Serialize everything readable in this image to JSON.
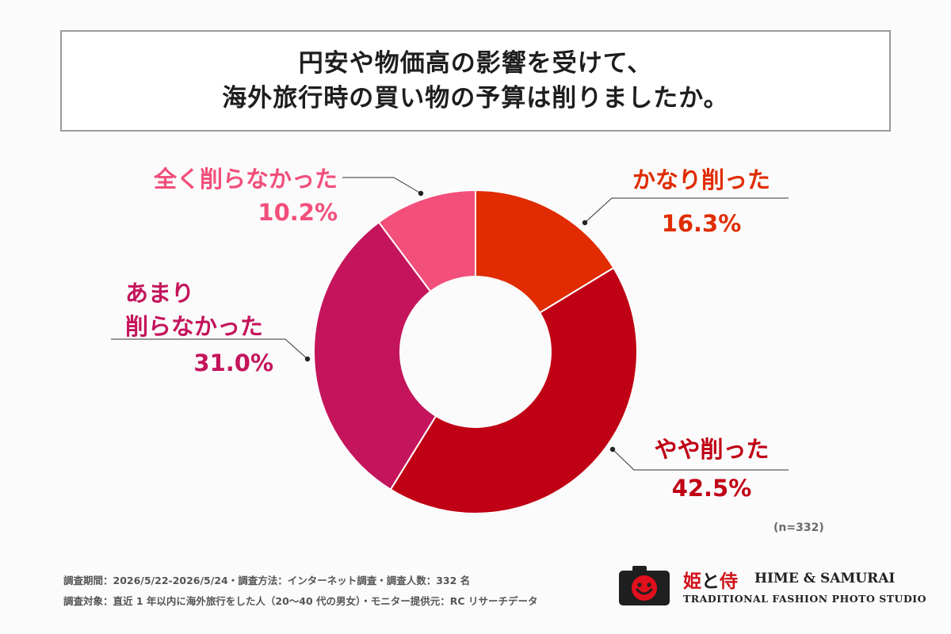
{
  "title": {
    "line1": "円安や物価高の影響を受けて、",
    "line2": "海外旅行時の買い物の予算は削りましたか。"
  },
  "chart_data": {
    "type": "pie",
    "donut": true,
    "unit": "%",
    "slices": [
      {
        "label": "かなり削った",
        "value": 16.3,
        "display": "16.3%",
        "color": "#e02c00"
      },
      {
        "label": "やや削った",
        "value": 42.5,
        "display": "42.5%",
        "color": "#c00014"
      },
      {
        "label": "あまり削らなかった",
        "value": 31.0,
        "display": "31.0%",
        "color": "#c4155c"
      },
      {
        "label": "全く削らなかった",
        "value": 10.2,
        "display": "10.2%",
        "color": "#f24f7b"
      }
    ],
    "legend": "callout-labels",
    "sample_size": "(n=332)"
  },
  "footnotes": {
    "line1": "調査期間：2026/5/22-2026/5/24・調査方法：インターネット調査・調査人数：332 名",
    "line2": "調査対象：直近 1 年以内に海外旅行をした人（20〜40 代の男女）・モニター提供元：RC リサーチデータ"
  },
  "logo": {
    "kanji_1": "姫",
    "kanji_2": "と",
    "kanji_3": "侍",
    "name_en": "HIME & SAMURAI",
    "tagline": "TRADITIONAL FASHION PHOTO STUDIO",
    "icon": "camera-smiley-icon",
    "brand_color": "#d0101a"
  }
}
